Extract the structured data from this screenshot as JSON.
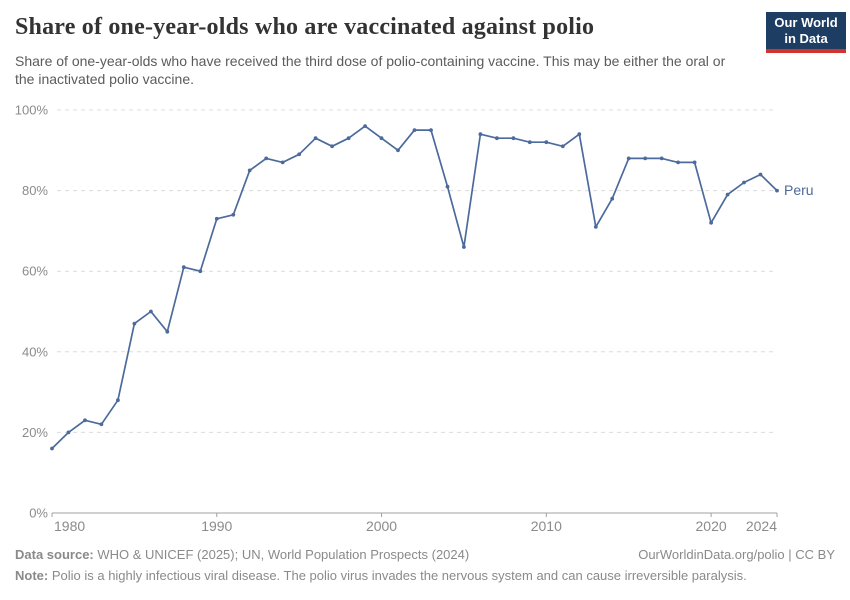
{
  "header": {
    "title": "Share of one-year-olds who are vaccinated against polio",
    "subtitle": "Share of one-year-olds who have received the third dose of polio-containing vaccine. This may be either the oral or the inactivated polio vaccine.",
    "logo": {
      "line1": "Our World",
      "line2": "in Data",
      "bg_color": "#1d3d63",
      "accent_color": "#d1332e"
    }
  },
  "chart_data": {
    "type": "line",
    "title": "Share of one-year-olds who are vaccinated against polio",
    "xlabel": "",
    "ylabel": "",
    "xlim": [
      1980,
      2024
    ],
    "ylim": [
      0,
      100
    ],
    "grid": "horizontal-dashed",
    "legend_position": "end-of-line-label",
    "x": [
      1980,
      1981,
      1982,
      1983,
      1984,
      1985,
      1986,
      1987,
      1988,
      1989,
      1990,
      1991,
      1992,
      1993,
      1994,
      1995,
      1996,
      1997,
      1998,
      1999,
      2000,
      2001,
      2002,
      2003,
      2004,
      2005,
      2006,
      2007,
      2008,
      2009,
      2010,
      2011,
      2012,
      2013,
      2014,
      2015,
      2016,
      2017,
      2018,
      2019,
      2020,
      2021,
      2022,
      2023,
      2024
    ],
    "series": [
      {
        "name": "Peru",
        "color": "#4C6A9C",
        "values": [
          16,
          20,
          23,
          22,
          28,
          47,
          50,
          45,
          61,
          60,
          73,
          74,
          85,
          88,
          87,
          89,
          93,
          91,
          93,
          96,
          93,
          90,
          95,
          95,
          81,
          66,
          94,
          93,
          93,
          92,
          92,
          91,
          94,
          71,
          78,
          88,
          88,
          88,
          87,
          87,
          72,
          79,
          82,
          84,
          80
        ]
      }
    ],
    "x_ticks": [
      {
        "value": 1980,
        "label": "1980",
        "anchor": "start"
      },
      {
        "value": 1990,
        "label": "1990",
        "anchor": "middle"
      },
      {
        "value": 2000,
        "label": "2000",
        "anchor": "middle"
      },
      {
        "value": 2010,
        "label": "2010",
        "anchor": "middle"
      },
      {
        "value": 2020,
        "label": "2020",
        "anchor": "middle"
      },
      {
        "value": 2024,
        "label": "2024",
        "anchor": "end"
      }
    ],
    "y_ticks": [
      {
        "value": 0,
        "label": "0%"
      },
      {
        "value": 20,
        "label": "20%"
      },
      {
        "value": 40,
        "label": "40%"
      },
      {
        "value": 60,
        "label": "60%"
      },
      {
        "value": 80,
        "label": "80%"
      },
      {
        "value": 100,
        "label": "100%"
      }
    ],
    "colors": {
      "gridline": "#dcdcdc",
      "axis": "#a0a0a0",
      "tick_label": "#8b8b8b"
    }
  },
  "footer": {
    "datasource_label": "Data source:",
    "datasource_text": " WHO & UNICEF (2025); UN, World Population Prospects (2024)",
    "rights_text": "OurWorldinData.org/polio | CC BY",
    "note_label": "Note:",
    "note_text": " Polio is a highly infectious viral disease. The polio virus invades the nervous system and can cause irreversible paralysis."
  }
}
